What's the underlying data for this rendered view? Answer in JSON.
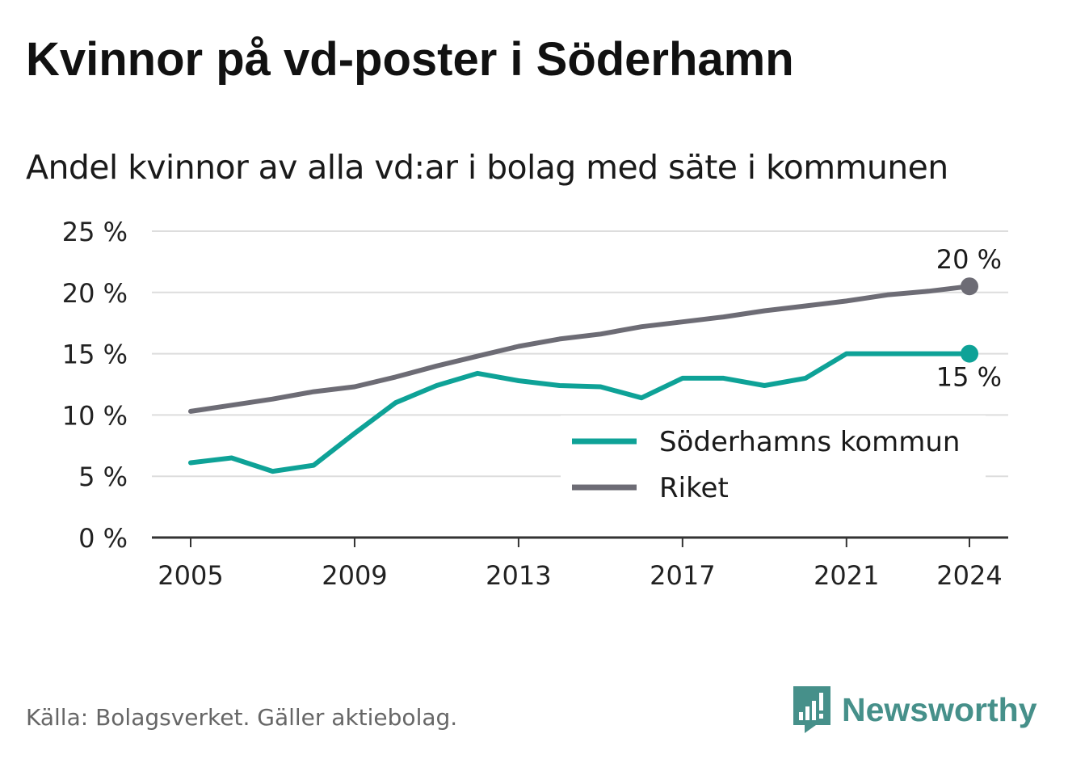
{
  "title": "Kvinnor på vd-poster i Söderhamn",
  "subtitle": "Andel kvinnor av alla vd:ar i bolag med säte i kommunen",
  "source": "Källa: Bolagsverket. Gäller aktiebolag.",
  "brand": {
    "name": "Newsworthy",
    "icon": "newsworthy-logo-icon"
  },
  "colors": {
    "kommun": "#0ea297",
    "riket": "#6d6c75",
    "grid": "#dddddd",
    "axis": "#333333",
    "brand": "#46908a"
  },
  "chart_data": {
    "type": "line",
    "x": [
      2005,
      2006,
      2007,
      2008,
      2009,
      2010,
      2011,
      2012,
      2013,
      2014,
      2015,
      2016,
      2017,
      2018,
      2019,
      2020,
      2021,
      2022,
      2023,
      2024
    ],
    "series": [
      {
        "name": "Söderhamns kommun",
        "color": "#0ea297",
        "values": [
          6.1,
          6.5,
          5.4,
          5.9,
          8.5,
          11.0,
          12.4,
          13.4,
          12.8,
          12.4,
          12.3,
          11.4,
          13.0,
          13.0,
          12.4,
          13.0,
          15.0,
          15.0,
          15.0,
          15.0
        ]
      },
      {
        "name": "Riket",
        "color": "#6d6c75",
        "values": [
          10.3,
          10.8,
          11.3,
          11.9,
          12.3,
          13.1,
          14.0,
          14.8,
          15.6,
          16.2,
          16.6,
          17.2,
          17.6,
          18.0,
          18.5,
          18.9,
          19.3,
          19.8,
          20.1,
          20.5
        ]
      }
    ],
    "end_labels": [
      {
        "series": "Riket",
        "text": "20 %"
      },
      {
        "series": "Söderhamns kommun",
        "text": "15 %"
      }
    ],
    "ylim": [
      0,
      25
    ],
    "yticks": [
      0,
      5,
      10,
      15,
      20,
      25
    ],
    "ytick_labels": [
      "0 %",
      "5 %",
      "10 %",
      "15 %",
      "20 %",
      "25 %"
    ],
    "xticks": [
      2005,
      2009,
      2013,
      2017,
      2021,
      2024
    ],
    "xtick_labels": [
      "2005",
      "2009",
      "2013",
      "2017",
      "2021",
      "2024"
    ],
    "grid": true,
    "legend_position": "right"
  }
}
